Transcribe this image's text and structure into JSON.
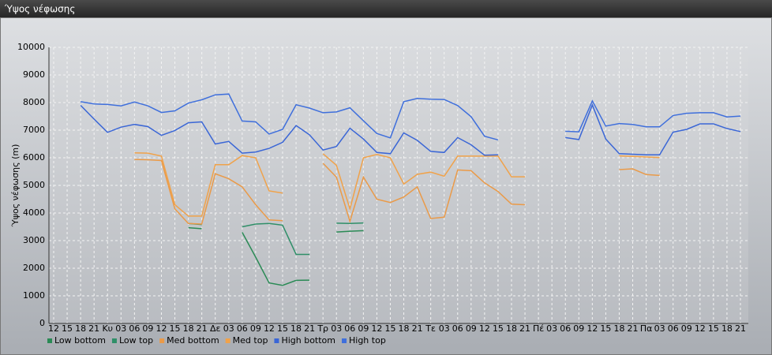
{
  "chart_data": {
    "type": "line",
    "title": "Ύψος νέφωσης",
    "ylabel": "Ύψος νέφωσης (m)",
    "categories": [
      "12",
      "15",
      "18",
      "21",
      "Κυ",
      "03",
      "06",
      "09",
      "12",
      "15",
      "18",
      "21",
      "Δε",
      "03",
      "06",
      "09",
      "12",
      "15",
      "18",
      "21",
      "Τρ",
      "03",
      "06",
      "09",
      "12",
      "15",
      "18",
      "21",
      "Τε",
      "03",
      "06",
      "09",
      "12",
      "15",
      "18",
      "21",
      "Πέ",
      "03",
      "06",
      "09",
      "12",
      "15",
      "18",
      "21",
      "Πα",
      "03",
      "06",
      "09",
      "12",
      "15",
      "18",
      "21"
    ],
    "ylim": [
      0,
      10000
    ],
    "yticks": [
      0,
      1000,
      2000,
      3000,
      4000,
      5000,
      6000,
      7000,
      8000,
      9000,
      10000
    ],
    "grid": true,
    "series": [
      {
        "name": "Low bottom",
        "color": "#2a8a55",
        "values": [
          null,
          null,
          null,
          null,
          null,
          null,
          null,
          null,
          null,
          null,
          3470,
          3430,
          null,
          null,
          3300,
          2400,
          1470,
          1380,
          1560,
          1570,
          null,
          3310,
          3340,
          3360,
          null,
          null,
          null,
          null,
          null,
          null,
          null,
          null,
          null,
          null,
          null,
          null,
          null,
          null,
          null,
          null,
          null,
          null,
          null,
          null,
          null,
          null,
          null,
          null,
          null,
          null,
          null,
          null
        ]
      },
      {
        "name": "Low top",
        "color": "#2f8f68",
        "values": [
          null,
          null,
          null,
          null,
          null,
          null,
          null,
          null,
          null,
          null,
          3620,
          3580,
          null,
          null,
          3500,
          3600,
          3620,
          3560,
          2500,
          2500,
          null,
          3630,
          3620,
          3640,
          null,
          null,
          null,
          null,
          null,
          null,
          null,
          null,
          null,
          null,
          null,
          null,
          null,
          null,
          null,
          null,
          null,
          null,
          null,
          null,
          null,
          null,
          null,
          null,
          null,
          null,
          null,
          null
        ]
      },
      {
        "name": "Med bottom",
        "color": "#ea9a48",
        "values": [
          null,
          null,
          null,
          null,
          null,
          null,
          5940,
          5930,
          5900,
          4150,
          3620,
          3600,
          5420,
          5240,
          4950,
          4300,
          3750,
          3720,
          null,
          null,
          5800,
          5300,
          3700,
          5300,
          4500,
          4380,
          4580,
          4950,
          3800,
          3850,
          5560,
          5530,
          5090,
          4780,
          4320,
          4300,
          null,
          null,
          null,
          null,
          null,
          null,
          5570,
          5600,
          5390,
          5360,
          null,
          null,
          null,
          null,
          null,
          null
        ]
      },
      {
        "name": "Med top",
        "color": "#f0a24a",
        "values": [
          null,
          null,
          null,
          null,
          null,
          null,
          6180,
          6170,
          6060,
          4300,
          3890,
          3890,
          5750,
          5750,
          6080,
          6000,
          4800,
          4720,
          null,
          null,
          6150,
          5730,
          4150,
          6000,
          6120,
          6000,
          5050,
          5400,
          5480,
          5330,
          6060,
          6060,
          6060,
          6060,
          5310,
          5310,
          null,
          null,
          null,
          null,
          null,
          null,
          6070,
          6050,
          6030,
          6010,
          null,
          null,
          null,
          null,
          null,
          null
        ]
      },
      {
        "name": "High bottom",
        "color": "#3a66d6",
        "values": [
          null,
          null,
          7900,
          7400,
          6920,
          7110,
          7210,
          7130,
          6810,
          6990,
          7270,
          7300,
          6500,
          6590,
          6170,
          6210,
          6340,
          6560,
          7170,
          6830,
          6280,
          6410,
          7070,
          6680,
          6190,
          6150,
          6900,
          6630,
          6230,
          6190,
          6730,
          6470,
          6090,
          6110,
          null,
          null,
          null,
          null,
          6730,
          6660,
          7910,
          6680,
          6150,
          6130,
          6110,
          6110,
          6930,
          7030,
          7230,
          7230,
          7060,
          6950
        ]
      },
      {
        "name": "High top",
        "color": "#3f6fdc",
        "values": [
          null,
          null,
          8030,
          7950,
          7930,
          7880,
          8020,
          7880,
          7640,
          7700,
          7980,
          8100,
          8280,
          8310,
          7330,
          7300,
          6860,
          7030,
          7920,
          7800,
          7630,
          7660,
          7810,
          7340,
          6880,
          6720,
          8030,
          8150,
          8120,
          8110,
          7890,
          7490,
          6780,
          6650,
          null,
          null,
          null,
          null,
          6960,
          6940,
          8060,
          7150,
          7240,
          7210,
          7120,
          7120,
          7530,
          7610,
          7630,
          7630,
          7480,
          7510
        ]
      }
    ]
  }
}
